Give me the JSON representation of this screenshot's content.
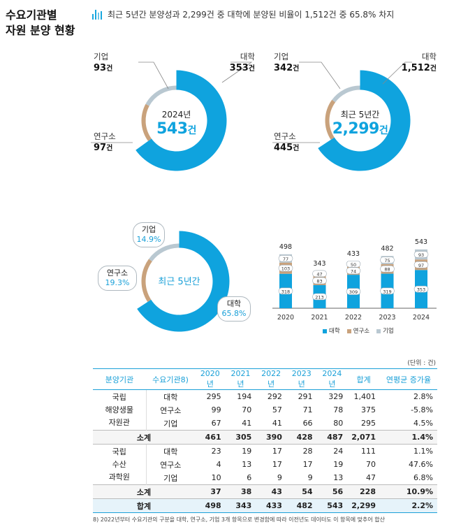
{
  "section_title": "수요기관별\n자원 분양 현황",
  "summary": "최근 5년간 분양성과 2,299건 중 대학에 분양된 비율이 1,512건 중 65.8% 차지",
  "colors": {
    "university": "#0fa3de",
    "institute": "#c9a27c",
    "company": "#b9c8d1"
  },
  "chart_data": [
    {
      "type": "pie",
      "center_sub": "2024년",
      "center_big": "543",
      "center_unit": "건",
      "slices": [
        {
          "label": "대학",
          "value": 353,
          "display": "353"
        },
        {
          "label": "연구소",
          "value": 97,
          "display": "97"
        },
        {
          "label": "기업",
          "value": 93,
          "display": "93"
        }
      ],
      "unit": "건"
    },
    {
      "type": "pie",
      "center_sub": "최근 5년간",
      "center_big": "2,299",
      "center_unit": "건",
      "slices": [
        {
          "label": "대학",
          "value": 1512,
          "display": "1,512"
        },
        {
          "label": "연구소",
          "value": 445,
          "display": "445"
        },
        {
          "label": "기업",
          "value": 342,
          "display": "342"
        }
      ],
      "unit": "건"
    },
    {
      "type": "pie",
      "center_label": "최근 5년간",
      "slices": [
        {
          "label": "대학",
          "value": 65.8,
          "display": "65.8%"
        },
        {
          "label": "연구소",
          "value": 19.3,
          "display": "19.3%"
        },
        {
          "label": "기업",
          "value": 14.9,
          "display": "14.9%"
        }
      ]
    },
    {
      "type": "bar",
      "stacked": true,
      "categories": [
        "2020",
        "2021",
        "2022",
        "2023",
        "2024"
      ],
      "series": [
        {
          "name": "대학",
          "values": [
            318,
            213,
            309,
            319,
            353
          ]
        },
        {
          "name": "연구소",
          "values": [
            103,
            83,
            74,
            88,
            97
          ]
        },
        {
          "name": "기업",
          "values": [
            77,
            47,
            50,
            75,
            93
          ]
        }
      ],
      "totals": [
        498,
        343,
        433,
        482,
        543
      ],
      "legend_position": "bottom"
    }
  ],
  "table": {
    "unit_note": "(단위 : 건)",
    "headers": [
      "분양기관",
      "수요기관8)",
      "2020년",
      "2021년",
      "2022년",
      "2023년",
      "2024년",
      "합계",
      "연평균 증가율"
    ],
    "groups": [
      {
        "institution": "국립\n해양생물\n자원관",
        "rows": [
          {
            "source": "대학",
            "values": [
              "295",
              "194",
              "292",
              "291",
              "329",
              "1,401",
              "2.8%"
            ]
          },
          {
            "source": "연구소",
            "values": [
              "99",
              "70",
              "57",
              "71",
              "78",
              "375",
              "-5.8%"
            ]
          },
          {
            "source": "기업",
            "values": [
              "67",
              "41",
              "41",
              "66",
              "80",
              "295",
              "4.5%"
            ]
          }
        ],
        "subtotal": {
          "label": "소계",
          "values": [
            "461",
            "305",
            "390",
            "428",
            "487",
            "2,071",
            "1.4%"
          ]
        }
      },
      {
        "institution": "국립\n수산\n과학원",
        "rows": [
          {
            "source": "대학",
            "values": [
              "23",
              "19",
              "17",
              "28",
              "24",
              "111",
              "1.1%"
            ]
          },
          {
            "source": "연구소",
            "values": [
              "4",
              "13",
              "17",
              "17",
              "19",
              "70",
              "47.6%"
            ]
          },
          {
            "source": "기업",
            "values": [
              "10",
              "6",
              "9",
              "9",
              "13",
              "47",
              "6.8%"
            ]
          }
        ],
        "subtotal": {
          "label": "소계",
          "values": [
            "37",
            "38",
            "43",
            "54",
            "56",
            "228",
            "10.9%"
          ]
        }
      }
    ],
    "total": {
      "label": "합계",
      "values": [
        "498",
        "343",
        "433",
        "482",
        "543",
        "2,299",
        "2.2%"
      ]
    }
  },
  "footnote": "8) 2022년부터 수요기관의 구분을 대학, 연구소, 기업 3개 항목으로 변경함에 따라 이전년도 데이터도 이 항목에 맞추어 합산"
}
